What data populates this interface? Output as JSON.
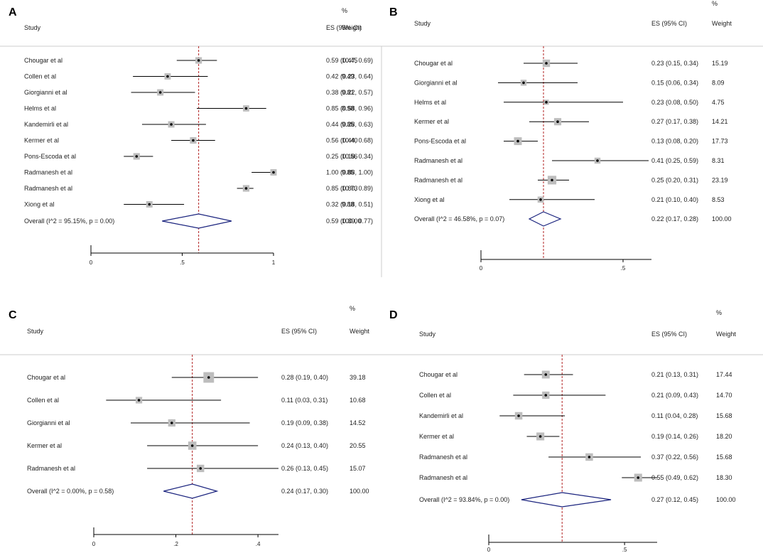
{
  "chart_data": [
    {
      "type": "forest",
      "panel": "A",
      "header": {
        "study": "Study",
        "es": "ES (95% CI)",
        "weight_unit": "%",
        "weight": "Weight"
      },
      "xlim": [
        0,
        1
      ],
      "ticks": [
        {
          "v": 0,
          "label": "0"
        },
        {
          "v": 0.5,
          "label": ".5"
        },
        {
          "v": 1,
          "label": "1"
        }
      ],
      "overall_line": 0.59,
      "studies": [
        {
          "name": "Chougar et al",
          "es": 0.59,
          "lo": 0.47,
          "hi": 0.69,
          "es_text": "0.59 (0.47, 0.69)",
          "weight": "10.45"
        },
        {
          "name": "Collen et al",
          "es": 0.42,
          "lo": 0.23,
          "hi": 0.64,
          "es_text": "0.42 (0.23, 0.64)",
          "weight": "9.49"
        },
        {
          "name": "Giorgianni et al",
          "es": 0.38,
          "lo": 0.22,
          "hi": 0.57,
          "es_text": "0.38 (0.22, 0.57)",
          "weight": "9.81"
        },
        {
          "name": "Helms et al",
          "es": 0.85,
          "lo": 0.58,
          "hi": 0.96,
          "es_text": "0.85 (0.58, 0.96)",
          "weight": "8.98"
        },
        {
          "name": "Kandemirli et al",
          "es": 0.44,
          "lo": 0.28,
          "hi": 0.63,
          "es_text": "0.44 (0.28, 0.63)",
          "weight": "9.85"
        },
        {
          "name": "Kermer et al",
          "es": 0.56,
          "lo": 0.44,
          "hi": 0.68,
          "es_text": "0.56 (0.44, 0.68)",
          "weight": "10.40"
        },
        {
          "name": "Pons-Escoda et al",
          "es": 0.25,
          "lo": 0.18,
          "hi": 0.34,
          "es_text": "0.25 (0.18, 0.34)",
          "weight": "10.56"
        },
        {
          "name": "Radmanesh et al",
          "es": 1.0,
          "lo": 0.88,
          "hi": 1.0,
          "es_text": "1.00 (0.88, 1.00)",
          "weight": "9.85"
        },
        {
          "name": "Radmanesh et al",
          "es": 0.85,
          "lo": 0.8,
          "hi": 0.89,
          "es_text": "0.85 (0.80, 0.89)",
          "weight": "10.73"
        },
        {
          "name": "Xiong et al",
          "es": 0.32,
          "lo": 0.18,
          "hi": 0.51,
          "es_text": "0.32 (0.18, 0.51)",
          "weight": "9.88"
        }
      ],
      "overall": {
        "label": "Overall  (I^2 = 95.15%, p = 0.00)",
        "es": 0.59,
        "lo": 0.39,
        "hi": 0.77,
        "es_text": "0.59 (0.39, 0.77)",
        "weight": "100.00"
      }
    },
    {
      "type": "forest",
      "panel": "B",
      "header": {
        "study": "Study",
        "es": "ES (95% CI)",
        "weight_unit": "%",
        "weight": "Weight"
      },
      "xlim": [
        0,
        0.6
      ],
      "ticks": [
        {
          "v": 0,
          "label": "0"
        },
        {
          "v": 0.5,
          "label": ".5"
        }
      ],
      "overall_line": 0.22,
      "studies": [
        {
          "name": "Chougar et al",
          "es": 0.23,
          "lo": 0.15,
          "hi": 0.34,
          "es_text": "0.23 (0.15, 0.34)",
          "weight": "15.19"
        },
        {
          "name": "Giorgianni et al",
          "es": 0.15,
          "lo": 0.06,
          "hi": 0.34,
          "es_text": "0.15 (0.06, 0.34)",
          "weight": "8.09"
        },
        {
          "name": "Helms et al",
          "es": 0.23,
          "lo": 0.08,
          "hi": 0.5,
          "es_text": "0.23 (0.08, 0.50)",
          "weight": "4.75"
        },
        {
          "name": "Kermer et al",
          "es": 0.27,
          "lo": 0.17,
          "hi": 0.38,
          "es_text": "0.27 (0.17, 0.38)",
          "weight": "14.21"
        },
        {
          "name": "Pons-Escoda et al",
          "es": 0.13,
          "lo": 0.08,
          "hi": 0.2,
          "es_text": "0.13 (0.08, 0.20)",
          "weight": "17.73"
        },
        {
          "name": "Radmanesh et al",
          "es": 0.41,
          "lo": 0.25,
          "hi": 0.59,
          "es_text": "0.41 (0.25, 0.59)",
          "weight": "8.31"
        },
        {
          "name": "Radmanesh et al",
          "es": 0.25,
          "lo": 0.2,
          "hi": 0.31,
          "es_text": "0.25 (0.20, 0.31)",
          "weight": "23.19"
        },
        {
          "name": "Xiong et al",
          "es": 0.21,
          "lo": 0.1,
          "hi": 0.4,
          "es_text": "0.21 (0.10, 0.40)",
          "weight": "8.53"
        }
      ],
      "overall": {
        "label": "Overall  (I^2 = 46.58%, p = 0.07)",
        "es": 0.22,
        "lo": 0.17,
        "hi": 0.28,
        "es_text": "0.22 (0.17, 0.28)",
        "weight": "100.00"
      }
    },
    {
      "type": "forest",
      "panel": "C",
      "header": {
        "study": "Study",
        "es": "ES (95% CI)",
        "weight_unit": "%",
        "weight": "Weight"
      },
      "xlim": [
        0,
        0.45
      ],
      "ticks": [
        {
          "v": 0,
          "label": "0"
        },
        {
          "v": 0.2,
          "label": ".2"
        },
        {
          "v": 0.4,
          "label": ".4"
        }
      ],
      "overall_line": 0.24,
      "studies": [
        {
          "name": "Chougar et al",
          "es": 0.28,
          "lo": 0.19,
          "hi": 0.4,
          "es_text": "0.28 (0.19, 0.40)",
          "weight": "39.18"
        },
        {
          "name": "Collen et al",
          "es": 0.11,
          "lo": 0.03,
          "hi": 0.31,
          "es_text": "0.11 (0.03, 0.31)",
          "weight": "10.68"
        },
        {
          "name": "Giorgianni et al",
          "es": 0.19,
          "lo": 0.09,
          "hi": 0.38,
          "es_text": "0.19 (0.09, 0.38)",
          "weight": "14.52"
        },
        {
          "name": "Kermer et al",
          "es": 0.24,
          "lo": 0.13,
          "hi": 0.4,
          "es_text": "0.24 (0.13, 0.40)",
          "weight": "20.55"
        },
        {
          "name": "Radmanesh et al",
          "es": 0.26,
          "lo": 0.13,
          "hi": 0.45,
          "es_text": "0.26 (0.13, 0.45)",
          "weight": "15.07"
        }
      ],
      "overall": {
        "label": "Overall  (I^2 = 0.00%, p = 0.58)",
        "es": 0.24,
        "lo": 0.17,
        "hi": 0.3,
        "es_text": "0.24 (0.17, 0.30)",
        "weight": "100.00"
      }
    },
    {
      "type": "forest",
      "panel": "D",
      "header": {
        "study": "Study",
        "es": "ES (95% CI)",
        "weight_unit": "%",
        "weight": "Weight"
      },
      "xlim": [
        0,
        0.62
      ],
      "ticks": [
        {
          "v": 0,
          "label": "0"
        },
        {
          "v": 0.5,
          "label": ".5"
        }
      ],
      "overall_line": 0.27,
      "studies": [
        {
          "name": "Chougar et al",
          "es": 0.21,
          "lo": 0.13,
          "hi": 0.31,
          "es_text": "0.21 (0.13, 0.31)",
          "weight": "17.44"
        },
        {
          "name": "Collen et al",
          "es": 0.21,
          "lo": 0.09,
          "hi": 0.43,
          "es_text": "0.21 (0.09, 0.43)",
          "weight": "14.70"
        },
        {
          "name": "Kandemirli et al",
          "es": 0.11,
          "lo": 0.04,
          "hi": 0.28,
          "es_text": "0.11 (0.04, 0.28)",
          "weight": "15.68"
        },
        {
          "name": "Kermer et al",
          "es": 0.19,
          "lo": 0.14,
          "hi": 0.26,
          "es_text": "0.19 (0.14, 0.26)",
          "weight": "18.20"
        },
        {
          "name": "Radmanesh et al",
          "es": 0.37,
          "lo": 0.22,
          "hi": 0.56,
          "es_text": "0.37 (0.22, 0.56)",
          "weight": "15.68"
        },
        {
          "name": "Radmanesh et al",
          "es": 0.55,
          "lo": 0.49,
          "hi": 0.62,
          "es_text": "0.55 (0.49, 0.62)",
          "weight": "18.30"
        }
      ],
      "overall": {
        "label": "Overall  (I^2 = 93.84%, p = 0.00)",
        "es": 0.27,
        "lo": 0.12,
        "hi": 0.45,
        "es_text": "0.27 (0.12, 0.45)",
        "weight": "100.00"
      }
    }
  ]
}
